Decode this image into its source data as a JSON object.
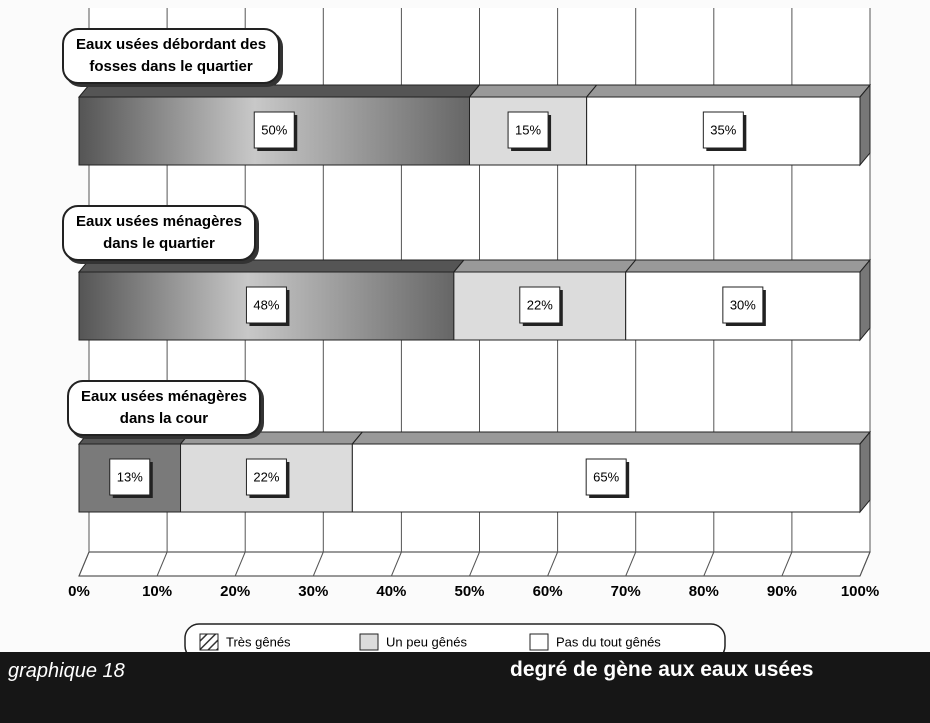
{
  "chart_data": {
    "type": "stacked-bar-horizontal",
    "categories": [
      "Eaux usées débordant des\nfosses dans le quartier",
      "Eaux usées ménagères\ndans le quartier",
      "Eaux usées ménagères\ndans la cour"
    ],
    "series": [
      {
        "name": "Très gênés",
        "color": "#7a7a7a",
        "values": [
          50,
          48,
          13
        ],
        "value_labels": [
          "50%",
          "48%",
          "13%"
        ]
      },
      {
        "name": "Un peu gênés",
        "color": "#dcdcdc",
        "values": [
          15,
          22,
          22
        ],
        "value_labels": [
          "15%",
          "22%",
          "22%"
        ]
      },
      {
        "name": "Pas du tout gênés",
        "color": "#ffffff",
        "values": [
          35,
          30,
          65
        ],
        "value_labels": [
          "35%",
          "30%",
          "65%"
        ]
      }
    ],
    "xlim": [
      0,
      100
    ],
    "xticks": [
      {
        "value": 0,
        "label": "0%"
      },
      {
        "value": 10,
        "label": "10%"
      },
      {
        "value": 20,
        "label": "20%"
      },
      {
        "value": 30,
        "label": "30%"
      },
      {
        "value": 40,
        "label": "40%"
      },
      {
        "value": 50,
        "label": "50%"
      },
      {
        "value": 60,
        "label": "60%"
      },
      {
        "value": 70,
        "label": "70%"
      },
      {
        "value": 80,
        "label": "80%"
      },
      {
        "value": 90,
        "label": "90%"
      },
      {
        "value": 100,
        "label": "100%"
      }
    ],
    "grid": true,
    "legend": "bottom"
  },
  "footer": {
    "left": "graphique 18",
    "right": "degré de gène aux eaux usées"
  }
}
